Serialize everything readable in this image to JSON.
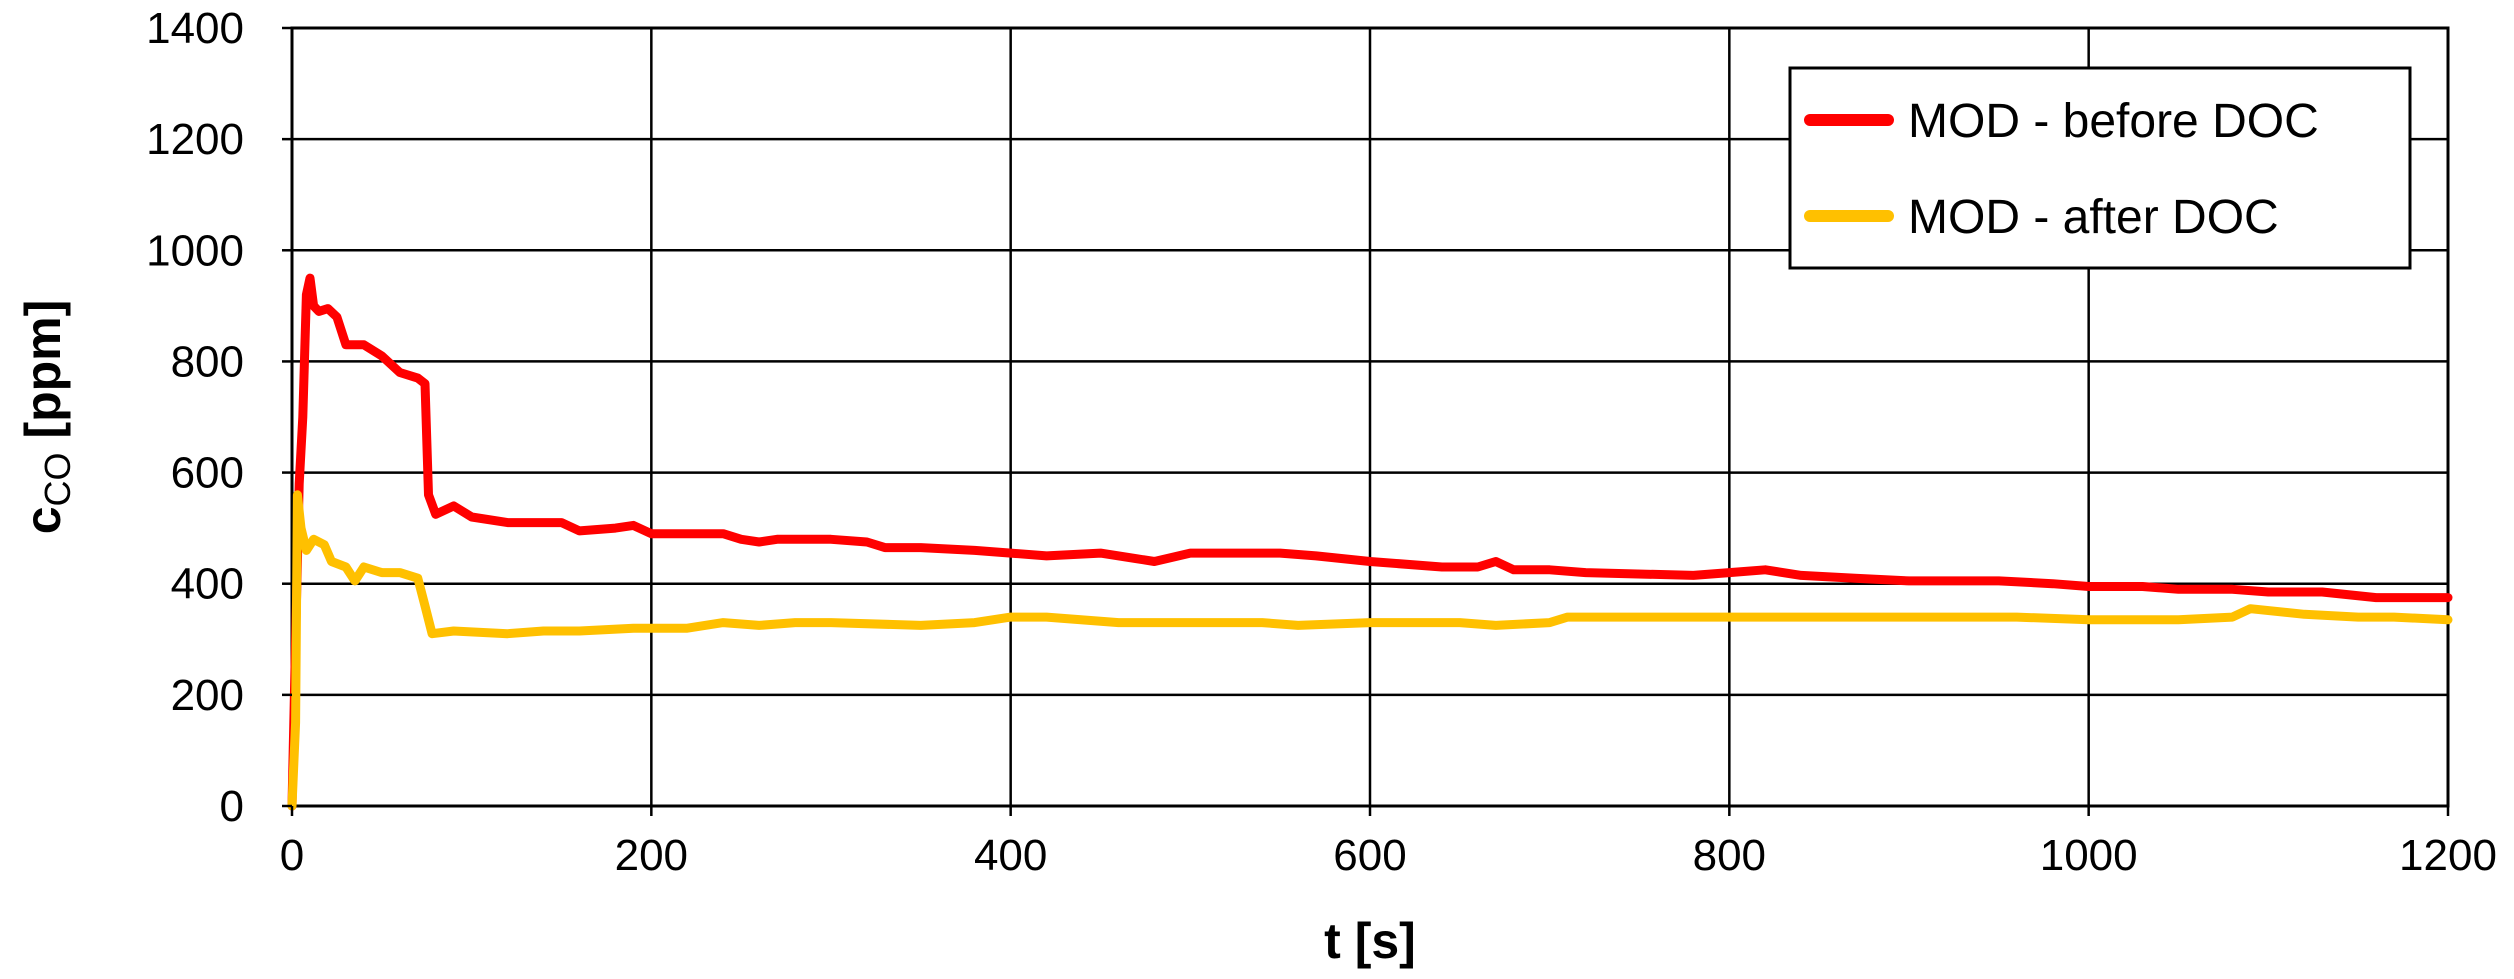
{
  "chart_data": {
    "type": "line",
    "title": "",
    "xlabel": "t [s]",
    "ylabel": {
      "main": "c",
      "sub": "CO",
      "unit": " [ppm]"
    },
    "xlim": [
      0,
      1200
    ],
    "ylim": [
      0,
      1400
    ],
    "x_ticks": [
      0,
      200,
      400,
      600,
      800,
      1000,
      1200
    ],
    "y_ticks": [
      0,
      200,
      400,
      600,
      800,
      1000,
      1200,
      1400
    ],
    "grid": true,
    "legend_position": "top-right",
    "series": [
      {
        "name": "MOD - before DOC",
        "color": "#ff0000",
        "points": [
          [
            0,
            0
          ],
          [
            2,
            300
          ],
          [
            4,
            580
          ],
          [
            6,
            700
          ],
          [
            8,
            920
          ],
          [
            10,
            950
          ],
          [
            12,
            900
          ],
          [
            15,
            890
          ],
          [
            20,
            895
          ],
          [
            25,
            880
          ],
          [
            30,
            830
          ],
          [
            40,
            830
          ],
          [
            50,
            810
          ],
          [
            60,
            780
          ],
          [
            70,
            770
          ],
          [
            74,
            760
          ],
          [
            76,
            560
          ],
          [
            80,
            525
          ],
          [
            90,
            540
          ],
          [
            100,
            520
          ],
          [
            120,
            510
          ],
          [
            150,
            510
          ],
          [
            160,
            495
          ],
          [
            180,
            500
          ],
          [
            190,
            505
          ],
          [
            200,
            490
          ],
          [
            240,
            490
          ],
          [
            250,
            480
          ],
          [
            260,
            475
          ],
          [
            270,
            480
          ],
          [
            300,
            480
          ],
          [
            320,
            475
          ],
          [
            330,
            465
          ],
          [
            350,
            465
          ],
          [
            380,
            460
          ],
          [
            400,
            455
          ],
          [
            420,
            450
          ],
          [
            450,
            455
          ],
          [
            470,
            445
          ],
          [
            480,
            440
          ],
          [
            500,
            455
          ],
          [
            530,
            455
          ],
          [
            550,
            455
          ],
          [
            570,
            450
          ],
          [
            600,
            440
          ],
          [
            640,
            430
          ],
          [
            660,
            430
          ],
          [
            670,
            440
          ],
          [
            680,
            425
          ],
          [
            700,
            425
          ],
          [
            720,
            420
          ],
          [
            780,
            415
          ],
          [
            800,
            420
          ],
          [
            820,
            425
          ],
          [
            840,
            415
          ],
          [
            870,
            410
          ],
          [
            900,
            405
          ],
          [
            950,
            405
          ],
          [
            980,
            400
          ],
          [
            1000,
            395
          ],
          [
            1030,
            395
          ],
          [
            1050,
            390
          ],
          [
            1080,
            390
          ],
          [
            1100,
            385
          ],
          [
            1130,
            385
          ],
          [
            1160,
            375
          ],
          [
            1200,
            375
          ]
        ]
      },
      {
        "name": "MOD - after DOC",
        "color": "#ffc000",
        "points": [
          [
            0,
            0
          ],
          [
            2,
            150
          ],
          [
            3,
            560
          ],
          [
            5,
            500
          ],
          [
            8,
            460
          ],
          [
            12,
            480
          ],
          [
            18,
            470
          ],
          [
            22,
            440
          ],
          [
            30,
            430
          ],
          [
            35,
            405
          ],
          [
            40,
            430
          ],
          [
            50,
            420
          ],
          [
            60,
            420
          ],
          [
            70,
            410
          ],
          [
            74,
            360
          ],
          [
            78,
            310
          ],
          [
            90,
            315
          ],
          [
            120,
            310
          ],
          [
            140,
            315
          ],
          [
            160,
            315
          ],
          [
            190,
            320
          ],
          [
            220,
            320
          ],
          [
            240,
            330
          ],
          [
            260,
            325
          ],
          [
            280,
            330
          ],
          [
            300,
            330
          ],
          [
            350,
            325
          ],
          [
            380,
            330
          ],
          [
            400,
            340
          ],
          [
            420,
            340
          ],
          [
            460,
            330
          ],
          [
            500,
            330
          ],
          [
            540,
            330
          ],
          [
            560,
            325
          ],
          [
            600,
            330
          ],
          [
            650,
            330
          ],
          [
            670,
            325
          ],
          [
            700,
            330
          ],
          [
            710,
            340
          ],
          [
            740,
            340
          ],
          [
            800,
            340
          ],
          [
            850,
            340
          ],
          [
            900,
            340
          ],
          [
            960,
            340
          ],
          [
            1000,
            335
          ],
          [
            1050,
            335
          ],
          [
            1080,
            340
          ],
          [
            1090,
            355
          ],
          [
            1120,
            345
          ],
          [
            1150,
            340
          ],
          [
            1170,
            340
          ],
          [
            1200,
            335
          ]
        ]
      }
    ]
  }
}
